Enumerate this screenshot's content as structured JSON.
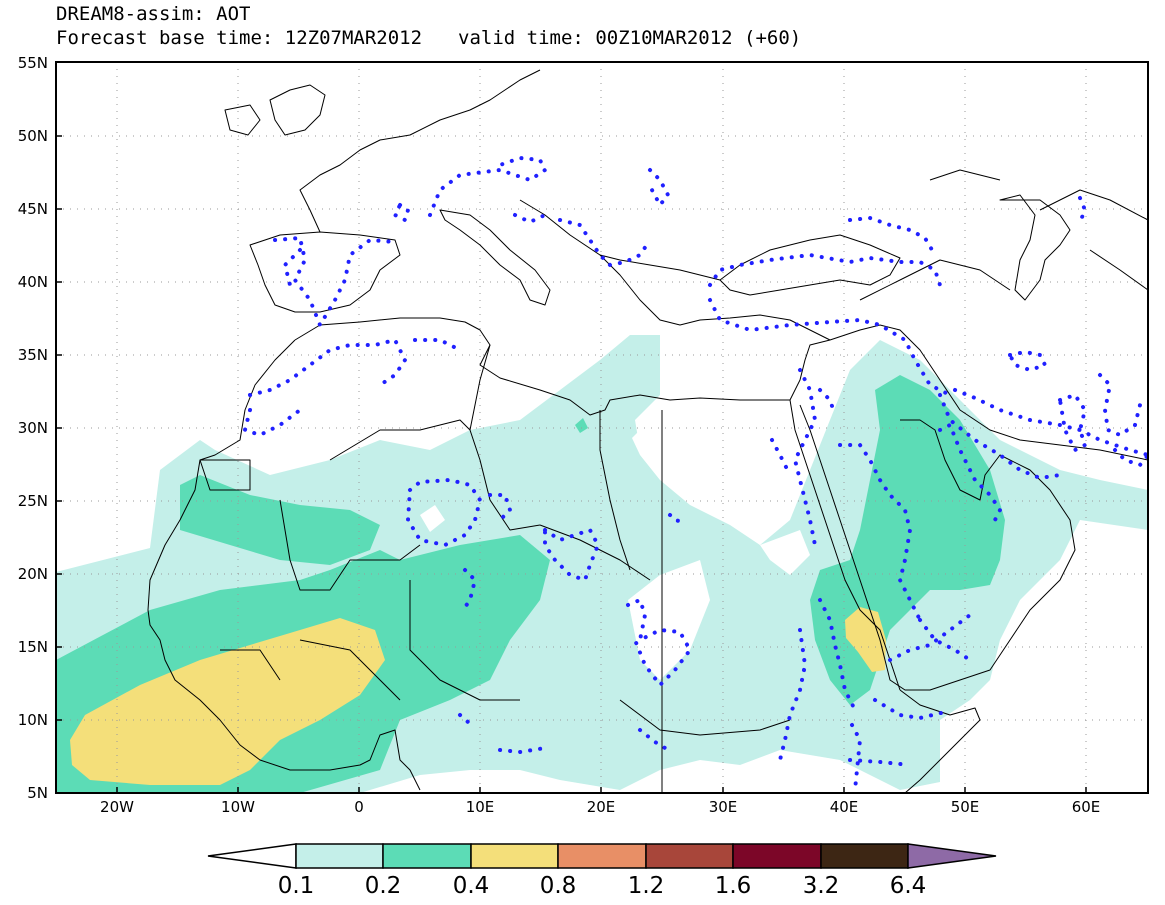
{
  "title": {
    "line1": "DREAM8-assim: AOT",
    "base_time": "Forecast base time: 12Z07MAR2012",
    "valid_time": "valid time: 00Z10MAR2012 (+60)"
  },
  "map": {
    "lon_range": [
      -25,
      65
    ],
    "lat_range": [
      5,
      55
    ],
    "lat_ticks": [
      "5N",
      "10N",
      "15N",
      "20N",
      "25N",
      "30N",
      "35N",
      "40N",
      "45N",
      "50N",
      "55N"
    ],
    "lon_ticks": [
      "20W",
      "10W",
      "0",
      "10E",
      "20E",
      "30E",
      "40E",
      "50E",
      "60E"
    ],
    "grid": true
  },
  "colorbar": {
    "labels": [
      "0.1",
      "0.2",
      "0.4",
      "0.8",
      "1.2",
      "1.6",
      "3.2",
      "6.4"
    ],
    "colors": [
      "#ffffff",
      "#c4efe9",
      "#5cdcb6",
      "#f4df7a",
      "#e88f66",
      "#a8463a",
      "#7c0628",
      "#3d2614",
      "#8e6aa6"
    ]
  },
  "colors": {
    "aot_0_1": "#c4efe9",
    "aot_0_2": "#5cdcb6",
    "aot_0_4": "#f4df7a",
    "contour": "#2020ff"
  }
}
